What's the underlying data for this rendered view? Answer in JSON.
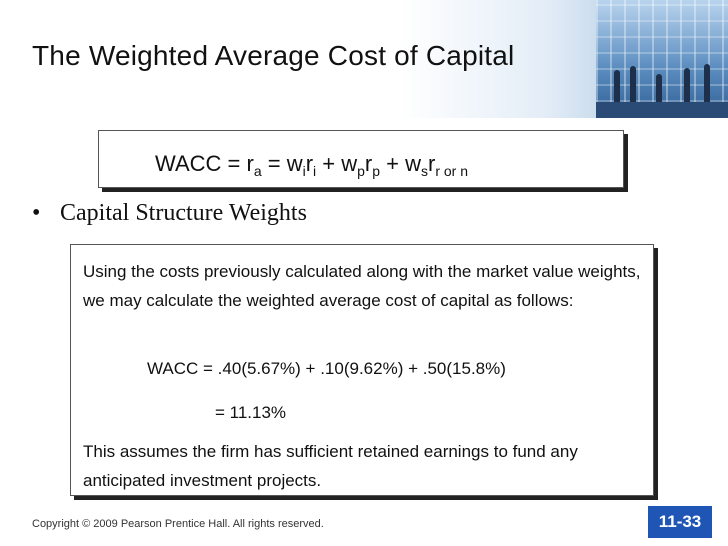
{
  "slide": {
    "title": "The Weighted Average Cost of Capital",
    "formula": {
      "lhs": "WACC = ",
      "r": "r",
      "r_sub": "a",
      "eq": " = ",
      "w1": "w",
      "w1_sub": "i",
      "r1": "r",
      "r1_sub": "i",
      "plus1": " + ",
      "w2": "w",
      "w2_sub": "p",
      "r2": "r",
      "r2_sub": "p",
      "plus2": " + ",
      "w3": "w",
      "w3_sub": "s",
      "r3": "r",
      "r3_sub": "r or n"
    },
    "bullet": "Capital Structure Weights",
    "box": {
      "intro": "Using the costs previously calculated along with the market value weights, we may calculate the weighted average cost of capital as follows:",
      "equation": "WACC  =  .40(5.67%) + .10(9.62%) + .50(15.8%)",
      "result": "=   11.13%",
      "note": "This assumes the firm has sufficient retained earnings to fund any anticipated investment projects."
    },
    "copyright": "Copyright © 2009 Pearson Prentice Hall. All rights reserved.",
    "page_number": "11-33"
  }
}
